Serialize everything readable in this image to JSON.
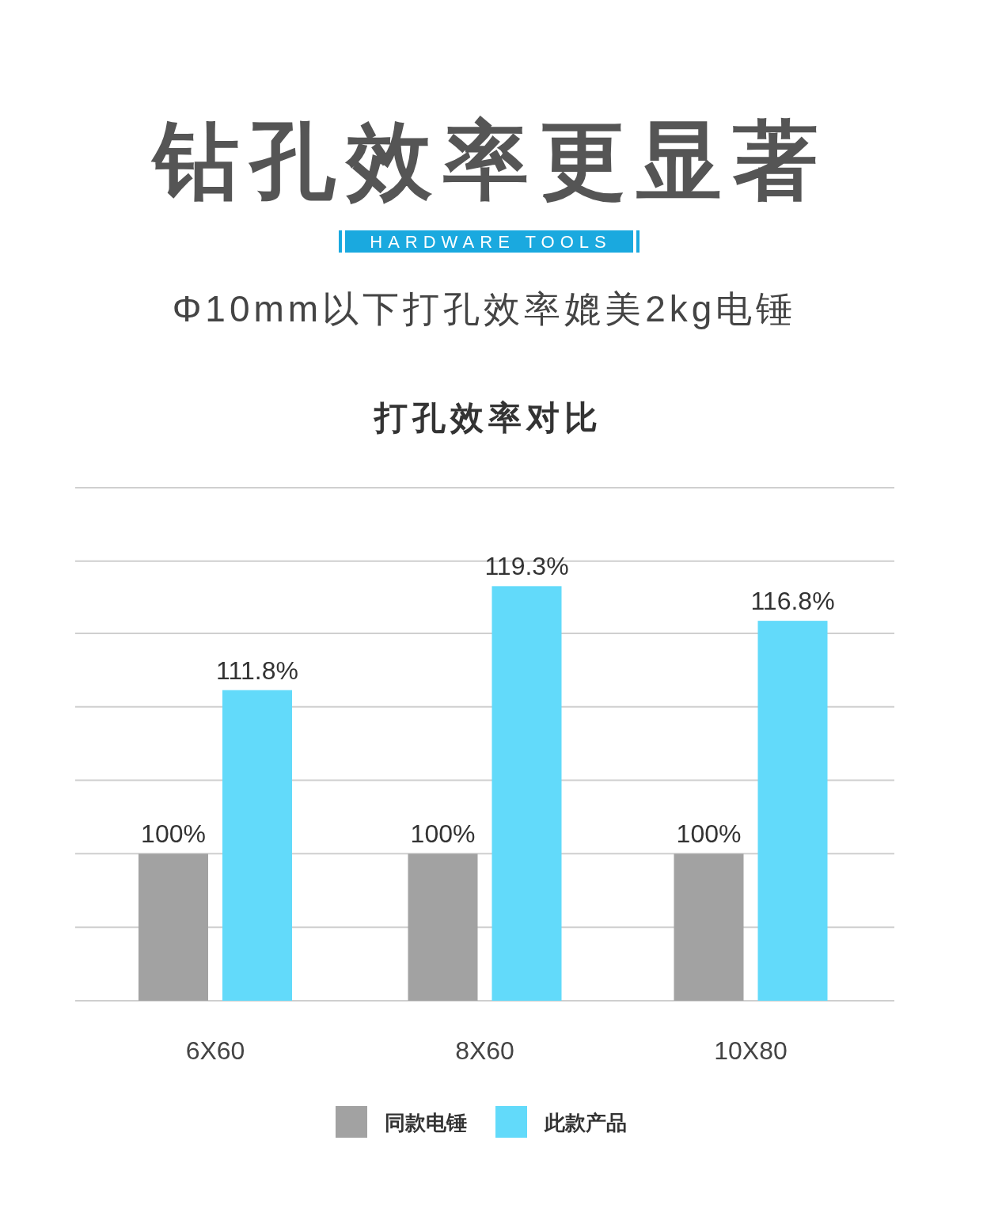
{
  "chart_data": {
    "type": "bar",
    "title": "钻孔效率更显著",
    "subtitle": "Φ10mm以下打孔效率媲美2kg电锤",
    "annotations": [
      "HARDWARE TOOLS",
      "打孔效率对比"
    ],
    "categories": [
      "6X60",
      "8X60",
      "10X80"
    ],
    "series": [
      {
        "name": "同款电锤",
        "color": "#a2a2a2",
        "values": [
          100,
          100,
          100
        ],
        "value_labels": [
          "100%",
          "100%",
          "100%"
        ]
      },
      {
        "name": "此款产品",
        "color": "#62dafa",
        "values": [
          111.8,
          119.3,
          116.8
        ],
        "value_labels": [
          "111.8%",
          "119.3%",
          "116.8%"
        ]
      }
    ],
    "ylim": [
      89.4,
      126.4
    ],
    "yticks": [
      {
        "value": 89.4,
        "label": null
      },
      {
        "value": 94.7,
        "label": null
      },
      {
        "value": 100,
        "label": null
      },
      {
        "value": 105.3,
        "label": null
      },
      {
        "value": 110.6,
        "label": null
      },
      {
        "value": 115.9,
        "label": null
      },
      {
        "value": 121.1,
        "label": null
      },
      {
        "value": 126.4,
        "label": null
      }
    ],
    "grid": "y",
    "legend": "bottom"
  }
}
